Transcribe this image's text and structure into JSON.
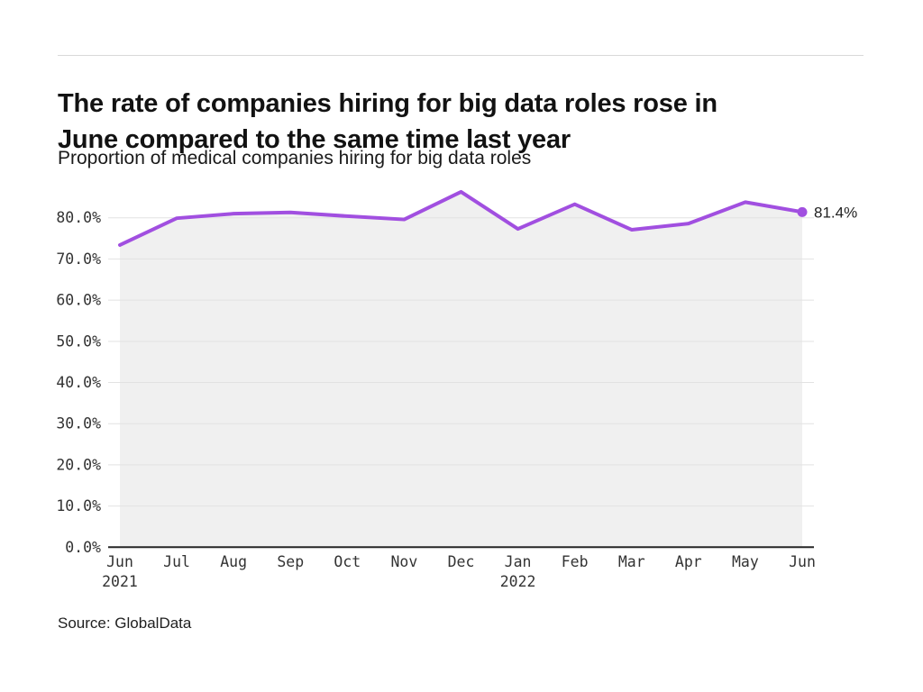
{
  "page": {
    "title_lines": [
      "The rate of companies hiring for big data roles rose in",
      "June compared to the same time last year"
    ],
    "subtitle": "Proportion of medical companies hiring for big data roles",
    "source": "Source: GlobalData"
  },
  "chart_data": {
    "type": "area",
    "title": "Proportion of medical companies hiring for big data roles",
    "categories": [
      "Jun 2021",
      "Jul",
      "Aug",
      "Sep",
      "Oct",
      "Nov",
      "Dec",
      "Jan 2022",
      "Feb",
      "Mar",
      "Apr",
      "May",
      "Jun"
    ],
    "values": [
      73.4,
      79.9,
      81.0,
      81.3,
      80.4,
      79.6,
      86.3,
      77.3,
      83.3,
      77.1,
      78.6,
      83.8,
      81.4
    ],
    "end_label": "81.4%",
    "x_ticks": [
      {
        "label": "Jun",
        "year": "2021"
      },
      {
        "label": "Jul"
      },
      {
        "label": "Aug"
      },
      {
        "label": "Sep"
      },
      {
        "label": "Oct"
      },
      {
        "label": "Nov"
      },
      {
        "label": "Dec"
      },
      {
        "label": "Jan",
        "year": "2022"
      },
      {
        "label": "Feb"
      },
      {
        "label": "Mar"
      },
      {
        "label": "Apr"
      },
      {
        "label": "May"
      },
      {
        "label": "Jun"
      }
    ],
    "y_ticks": [
      "0.0%",
      "10.0%",
      "20.0%",
      "30.0%",
      "40.0%",
      "50.0%",
      "60.0%",
      "70.0%",
      "80.0%"
    ],
    "ylim": [
      0,
      80
    ],
    "grid": true,
    "legend": "none",
    "colors": {
      "line": "#a14fe0",
      "area": "#f0f0f0",
      "grid": "#e2e2e2",
      "axis": "#262626",
      "tick_text": "#333333",
      "end_label_text": "#1f1f1f"
    }
  }
}
